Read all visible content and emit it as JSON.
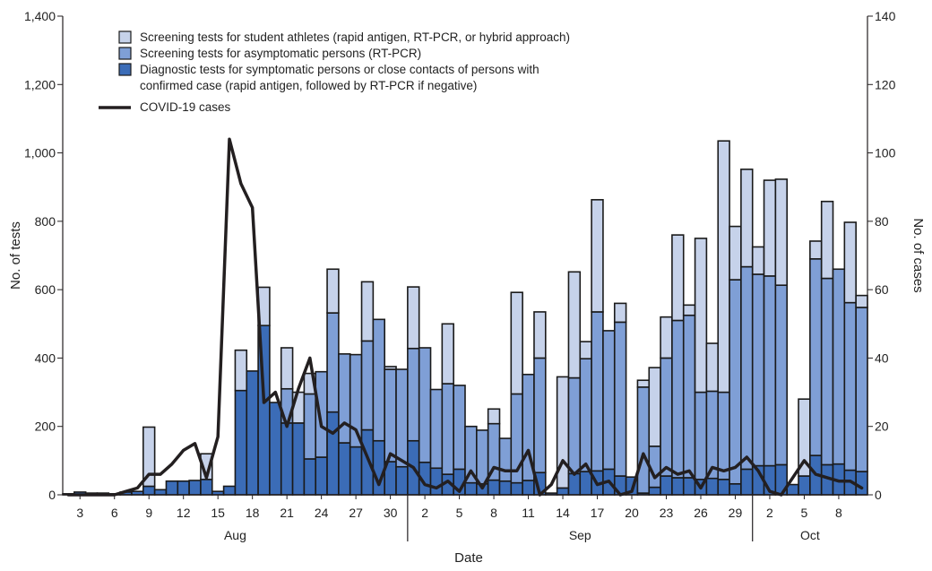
{
  "chart_data": {
    "type": "bar",
    "subtype": "stacked-bar-with-line",
    "title": "",
    "xlabel": "Date",
    "ylabel_left": "No. of tests",
    "ylabel_right": "No. of cases",
    "ylim_left": [
      0,
      1400
    ],
    "ylim_right": [
      0,
      140
    ],
    "yticks_left": [
      "0",
      "200",
      "400",
      "600",
      "800",
      "1,000",
      "1,200",
      "1,400"
    ],
    "yticks_right": [
      "0",
      "20",
      "40",
      "60",
      "80",
      "100",
      "120",
      "140"
    ],
    "x_tick_labels": [
      "3",
      "6",
      "9",
      "12",
      "15",
      "18",
      "21",
      "24",
      "27",
      "30",
      "2",
      "5",
      "8",
      "11",
      "14",
      "17",
      "20",
      "23",
      "26",
      "29",
      "2",
      "5",
      "8"
    ],
    "months": [
      "Aug",
      "Sep",
      "Oct"
    ],
    "legend_position": "top-left",
    "grid": false,
    "categories": [
      "Aug 2",
      "Aug 3",
      "Aug 4",
      "Aug 5",
      "Aug 6",
      "Aug 7",
      "Aug 8",
      "Aug 9",
      "Aug 10",
      "Aug 11",
      "Aug 12",
      "Aug 13",
      "Aug 14",
      "Aug 15",
      "Aug 16",
      "Aug 17",
      "Aug 18",
      "Aug 19",
      "Aug 20",
      "Aug 21",
      "Aug 22",
      "Aug 23",
      "Aug 24",
      "Aug 25",
      "Aug 26",
      "Aug 27",
      "Aug 28",
      "Aug 29",
      "Aug 30",
      "Aug 31",
      "Sep 1",
      "Sep 2",
      "Sep 3",
      "Sep 4",
      "Sep 5",
      "Sep 6",
      "Sep 7",
      "Sep 8",
      "Sep 9",
      "Sep 10",
      "Sep 11",
      "Sep 12",
      "Sep 13",
      "Sep 14",
      "Sep 15",
      "Sep 16",
      "Sep 17",
      "Sep 18",
      "Sep 19",
      "Sep 20",
      "Sep 21",
      "Sep 22",
      "Sep 23",
      "Sep 24",
      "Sep 25",
      "Sep 26",
      "Sep 27",
      "Sep 28",
      "Sep 29",
      "Sep 30",
      "Oct 1",
      "Oct 2",
      "Oct 3",
      "Oct 4",
      "Oct 5",
      "Oct 6",
      "Oct 7",
      "Oct 8",
      "Oct 9",
      "Oct 10"
    ],
    "series": [
      {
        "name": "Diagnostic tests for symptomatic persons or close contacts of persons with confirmed case (rapid antigen, followed by RT-PCR if negative)",
        "color": "#3b6cb7",
        "values": [
          3,
          8,
          5,
          5,
          3,
          8,
          10,
          25,
          15,
          40,
          40,
          42,
          45,
          10,
          25,
          305,
          362,
          495,
          270,
          210,
          210,
          105,
          110,
          242,
          152,
          140,
          190,
          158,
          97,
          82,
          158,
          95,
          78,
          60,
          75,
          35,
          32,
          43,
          40,
          35,
          42,
          65,
          5,
          20,
          62,
          68,
          70,
          75,
          55,
          52,
          5,
          22,
          55,
          50,
          50,
          45,
          48,
          45,
          32,
          75,
          85,
          85,
          88,
          30,
          55,
          115,
          88,
          90,
          72,
          68
        ]
      },
      {
        "name": "Screening tests for asymptomatic persons (RT-PCR)",
        "color": "#7f9fd6",
        "values": [
          0,
          0,
          0,
          0,
          0,
          0,
          0,
          0,
          0,
          0,
          0,
          0,
          0,
          0,
          0,
          0,
          0,
          0,
          0,
          100,
          0,
          190,
          250,
          290,
          260,
          270,
          260,
          355,
          270,
          285,
          270,
          335,
          230,
          265,
          245,
          165,
          157,
          165,
          125,
          260,
          310,
          335,
          0,
          0,
          280,
          330,
          465,
          405,
          450,
          0,
          310,
          120,
          345,
          460,
          475,
          255,
          255,
          255,
          597,
          592,
          560,
          555,
          525,
          0,
          0,
          575,
          545,
          570,
          490,
          480
        ]
      },
      {
        "name": "Screening tests for student athletes (rapid antigen, RT-PCR, or hybrid approach)",
        "color": "#c6d2ea",
        "values": [
          0,
          0,
          0,
          0,
          0,
          0,
          0,
          173,
          0,
          0,
          0,
          0,
          75,
          0,
          0,
          118,
          0,
          112,
          0,
          120,
          90,
          60,
          0,
          128,
          0,
          0,
          173,
          0,
          8,
          0,
          180,
          0,
          0,
          175,
          0,
          0,
          0,
          43,
          0,
          297,
          0,
          135,
          0,
          325,
          310,
          50,
          328,
          0,
          55,
          0,
          20,
          230,
          120,
          250,
          30,
          450,
          140,
          735,
          156,
          285,
          80,
          280,
          310,
          0,
          225,
          52,
          225,
          0,
          235,
          35
        ]
      },
      {
        "name": "COVID-19 cases",
        "type": "line",
        "color": "#231f20",
        "values": [
          0,
          0,
          0,
          0,
          0,
          1,
          2,
          6,
          6,
          9,
          13,
          15,
          5,
          17,
          104,
          91,
          84,
          27,
          30,
          20,
          31,
          40,
          20,
          18,
          21,
          19,
          11,
          3,
          12,
          10,
          8,
          3,
          2,
          4,
          1,
          7,
          2,
          8,
          7,
          7,
          13,
          0,
          3,
          10,
          6,
          9,
          3,
          4,
          0,
          1,
          12,
          5,
          8,
          6,
          7,
          2,
          8,
          7,
          8,
          11,
          7,
          1,
          0,
          5,
          10,
          6,
          5,
          4,
          4,
          2
        ]
      }
    ]
  }
}
